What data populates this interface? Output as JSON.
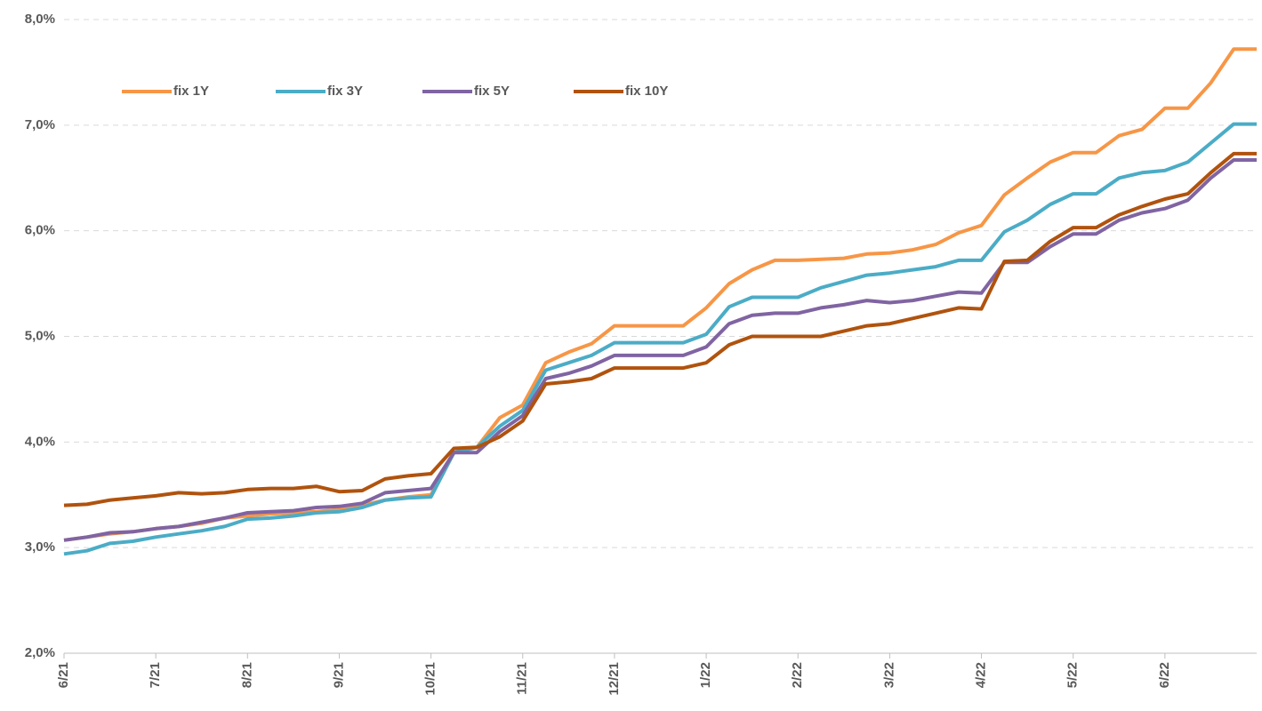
{
  "chart_data": {
    "type": "line",
    "categories": [
      "6/21",
      null,
      null,
      null,
      "7/21",
      null,
      null,
      null,
      "8/21",
      null,
      null,
      null,
      "9/21",
      null,
      null,
      null,
      "10/21",
      null,
      null,
      null,
      "11/21",
      null,
      null,
      null,
      "12/21",
      null,
      null,
      null,
      "1/22",
      null,
      null,
      null,
      "2/22",
      null,
      null,
      null,
      "3/22",
      null,
      null,
      null,
      "4/22",
      null,
      null,
      null,
      "5/22",
      null,
      null,
      null,
      "6/22",
      null,
      null,
      null,
      null
    ],
    "series": [
      {
        "name": "fix 1Y",
        "color": "#f79646",
        "values": [
          3.07,
          3.1,
          3.13,
          3.15,
          3.18,
          3.2,
          3.23,
          3.28,
          3.3,
          3.32,
          3.33,
          3.34,
          3.36,
          3.4,
          3.45,
          3.48,
          3.5,
          3.9,
          3.95,
          4.23,
          4.35,
          4.75,
          4.85,
          4.93,
          5.1,
          5.1,
          5.1,
          5.1,
          5.27,
          5.5,
          5.63,
          5.72,
          5.72,
          5.73,
          5.74,
          5.78,
          5.79,
          5.82,
          5.87,
          5.98,
          6.05,
          6.34,
          6.5,
          6.65,
          6.74,
          6.74,
          6.9,
          6.96,
          7.16,
          7.16,
          7.4,
          7.72,
          7.72
        ]
      },
      {
        "name": "fix 3Y",
        "color": "#4bacc6",
        "values": [
          2.94,
          2.97,
          3.04,
          3.06,
          3.1,
          3.13,
          3.16,
          3.2,
          3.27,
          3.28,
          3.3,
          3.33,
          3.34,
          3.38,
          3.45,
          3.47,
          3.48,
          3.9,
          3.95,
          4.15,
          4.3,
          4.68,
          4.75,
          4.82,
          4.94,
          4.94,
          4.94,
          4.94,
          5.02,
          5.28,
          5.37,
          5.37,
          5.37,
          5.46,
          5.52,
          5.58,
          5.6,
          5.63,
          5.66,
          5.72,
          5.72,
          5.99,
          6.1,
          6.25,
          6.35,
          6.35,
          6.5,
          6.55,
          6.57,
          6.65,
          6.83,
          7.01,
          7.01
        ]
      },
      {
        "name": "fix 5Y",
        "color": "#8064a2",
        "values": [
          3.07,
          3.1,
          3.14,
          3.15,
          3.18,
          3.2,
          3.24,
          3.28,
          3.33,
          3.34,
          3.35,
          3.38,
          3.39,
          3.42,
          3.52,
          3.54,
          3.56,
          3.9,
          3.9,
          4.1,
          4.25,
          4.6,
          4.65,
          4.72,
          4.82,
          4.82,
          4.82,
          4.82,
          4.9,
          5.12,
          5.2,
          5.22,
          5.22,
          5.27,
          5.3,
          5.34,
          5.32,
          5.34,
          5.38,
          5.42,
          5.41,
          5.7,
          5.7,
          5.85,
          5.97,
          5.97,
          6.1,
          6.17,
          6.21,
          6.29,
          6.5,
          6.67,
          6.67
        ]
      },
      {
        "name": "fix 10Y",
        "color": "#b0530e",
        "values": [
          3.4,
          3.41,
          3.45,
          3.47,
          3.49,
          3.52,
          3.51,
          3.52,
          3.55,
          3.56,
          3.56,
          3.58,
          3.53,
          3.54,
          3.65,
          3.68,
          3.7,
          3.94,
          3.95,
          4.05,
          4.2,
          4.55,
          4.57,
          4.6,
          4.7,
          4.7,
          4.7,
          4.7,
          4.75,
          4.92,
          5.0,
          5.0,
          5.0,
          5.0,
          5.05,
          5.1,
          5.12,
          5.17,
          5.22,
          5.27,
          5.26,
          5.71,
          5.72,
          5.9,
          6.03,
          6.03,
          6.15,
          6.23,
          6.3,
          6.35,
          6.55,
          6.73,
          6.73
        ]
      }
    ],
    "ylim": [
      2,
      8
    ],
    "yticks": [
      {
        "value": 2,
        "label": "2,0%"
      },
      {
        "value": 3,
        "label": "3,0%"
      },
      {
        "value": 4,
        "label": "4,0%"
      },
      {
        "value": 5,
        "label": "5,0%"
      },
      {
        "value": 6,
        "label": "6,0%"
      },
      {
        "value": 7,
        "label": "7,0%"
      },
      {
        "value": 8,
        "label": "8,0%"
      }
    ],
    "grid": true,
    "legend": "top-left"
  }
}
